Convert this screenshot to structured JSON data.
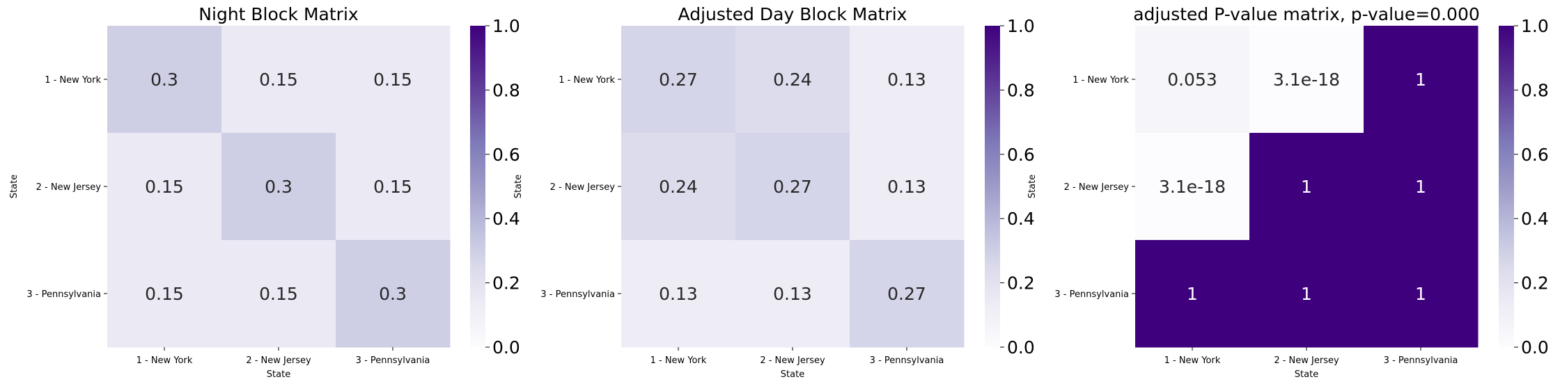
{
  "chart_data": [
    {
      "type": "heatmap",
      "title": "Night Block Matrix",
      "xlabel": "State",
      "ylabel": "State",
      "x_categories": [
        "1 - New York",
        "2 - New Jersey",
        "3 - Pennsylvania"
      ],
      "y_categories": [
        "1 - New York",
        "2 - New Jersey",
        "3 - Pennsylvania"
      ],
      "values": [
        [
          0.3,
          0.15,
          0.15
        ],
        [
          0.15,
          0.3,
          0.15
        ],
        [
          0.15,
          0.15,
          0.3
        ]
      ],
      "annotations": [
        [
          "0.3",
          "0.15",
          "0.15"
        ],
        [
          "0.15",
          "0.3",
          "0.15"
        ],
        [
          "0.15",
          "0.15",
          "0.3"
        ]
      ],
      "colorbar": {
        "range": [
          0,
          1
        ],
        "ticks": [
          "0.0",
          "0.2",
          "0.4",
          "0.6",
          "0.8",
          "1.0"
        ],
        "colormap": "Purples"
      }
    },
    {
      "type": "heatmap",
      "title": "Adjusted Day Block Matrix",
      "xlabel": "State",
      "ylabel": "State",
      "x_categories": [
        "1 - New York",
        "2 - New Jersey",
        "3 - Pennsylvania"
      ],
      "y_categories": [
        "1 - New York",
        "2 - New Jersey",
        "3 - Pennsylvania"
      ],
      "values": [
        [
          0.27,
          0.24,
          0.13
        ],
        [
          0.24,
          0.27,
          0.13
        ],
        [
          0.13,
          0.13,
          0.27
        ]
      ],
      "annotations": [
        [
          "0.27",
          "0.24",
          "0.13"
        ],
        [
          "0.24",
          "0.27",
          "0.13"
        ],
        [
          "0.13",
          "0.13",
          "0.27"
        ]
      ],
      "colorbar": {
        "range": [
          0,
          1
        ],
        "ticks": [
          "0.0",
          "0.2",
          "0.4",
          "0.6",
          "0.8",
          "1.0"
        ],
        "colormap": "Purples"
      }
    },
    {
      "type": "heatmap",
      "title": "adjusted P-value matrix, p-value=0.000",
      "xlabel": "State",
      "ylabel": "State",
      "x_categories": [
        "1 - New York",
        "2 - New Jersey",
        "3 - Pennsylvania"
      ],
      "y_categories": [
        "1 - New York",
        "2 - New Jersey",
        "3 - Pennsylvania"
      ],
      "values": [
        [
          0.053,
          3.1e-18,
          1
        ],
        [
          3.1e-18,
          1,
          1
        ],
        [
          1,
          1,
          1
        ]
      ],
      "annotations": [
        [
          "0.053",
          "3.1e-18",
          "1"
        ],
        [
          "3.1e-18",
          "1",
          "1"
        ],
        [
          "1",
          "1",
          "1"
        ]
      ],
      "colorbar": {
        "range": [
          0,
          1
        ],
        "ticks": [
          "0.0",
          "0.2",
          "0.4",
          "0.6",
          "0.8",
          "1.0"
        ],
        "colormap": "Purples"
      }
    }
  ]
}
